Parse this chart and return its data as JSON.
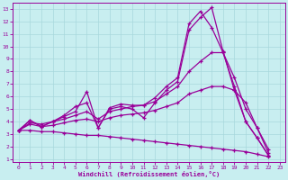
{
  "xlabel": "Windchill (Refroidissement éolien,°C)",
  "bg_color": "#c8eef0",
  "line_color": "#990099",
  "grid_color": "#a8d8dc",
  "xlim": [
    -0.5,
    23.5
  ],
  "ylim": [
    0.8,
    13.5
  ],
  "xticks": [
    0,
    1,
    2,
    3,
    4,
    5,
    6,
    7,
    8,
    9,
    10,
    11,
    12,
    13,
    14,
    15,
    16,
    17,
    18,
    19,
    20,
    21,
    22,
    23
  ],
  "yticks": [
    1,
    2,
    3,
    4,
    5,
    6,
    7,
    8,
    9,
    10,
    11,
    12,
    13
  ],
  "series": [
    {
      "x": [
        0,
        1,
        2,
        3,
        4,
        5,
        6,
        7,
        8,
        9,
        10,
        11,
        12,
        13,
        14,
        15,
        16,
        17,
        18,
        19,
        20,
        21,
        22
      ],
      "y": [
        3.3,
        4.1,
        3.6,
        4.0,
        4.4,
        4.8,
        6.4,
        3.5,
        5.0,
        5.2,
        5.0,
        4.3,
        5.5,
        6.5,
        7.2,
        11.3,
        12.3,
        13.1,
        9.6,
        6.5,
        4.0,
        2.7,
        1.3
      ]
    },
    {
      "x": [
        0,
        1,
        2,
        3,
        4,
        5,
        6,
        7,
        8,
        9,
        10,
        11,
        12,
        13,
        14,
        15,
        16,
        17,
        18,
        19,
        20,
        21,
        22
      ],
      "y": [
        3.3,
        4.1,
        3.6,
        4.0,
        4.5,
        5.2,
        5.5,
        3.5,
        5.1,
        5.4,
        5.3,
        5.3,
        5.9,
        6.8,
        7.5,
        11.8,
        12.8,
        11.5,
        9.5,
        6.8,
        4.0,
        2.7,
        1.3
      ]
    },
    {
      "x": [
        0,
        1,
        2,
        3,
        4,
        5,
        6,
        7,
        8,
        9,
        10,
        11,
        12,
        13,
        14,
        15,
        16,
        17,
        18,
        19,
        20,
        21,
        22
      ],
      "y": [
        3.3,
        3.9,
        3.8,
        4.0,
        4.2,
        4.5,
        4.8,
        4.2,
        4.8,
        5.0,
        5.2,
        5.3,
        5.6,
        6.2,
        6.8,
        8.0,
        8.8,
        9.5,
        9.5,
        7.5,
        5.0,
        3.5,
        1.8
      ]
    },
    {
      "x": [
        0,
        1,
        2,
        3,
        4,
        5,
        6,
        7,
        8,
        9,
        10,
        11,
        12,
        13,
        14,
        15,
        16,
        17,
        18,
        19,
        20,
        21,
        22
      ],
      "y": [
        3.3,
        3.8,
        3.6,
        3.7,
        3.9,
        4.1,
        4.2,
        4.0,
        4.3,
        4.5,
        4.6,
        4.7,
        4.9,
        5.2,
        5.5,
        6.2,
        6.5,
        6.8,
        6.8,
        6.5,
        5.5,
        3.5,
        1.5
      ]
    },
    {
      "x": [
        0,
        1,
        2,
        3,
        4,
        5,
        6,
        7,
        8,
        9,
        10,
        11,
        12,
        13,
        14,
        15,
        16,
        17,
        18,
        19,
        20,
        21,
        22
      ],
      "y": [
        3.3,
        3.3,
        3.2,
        3.2,
        3.1,
        3.0,
        2.9,
        2.9,
        2.8,
        2.7,
        2.6,
        2.5,
        2.4,
        2.3,
        2.2,
        2.1,
        2.0,
        1.9,
        1.8,
        1.7,
        1.6,
        1.4,
        1.2
      ]
    }
  ]
}
